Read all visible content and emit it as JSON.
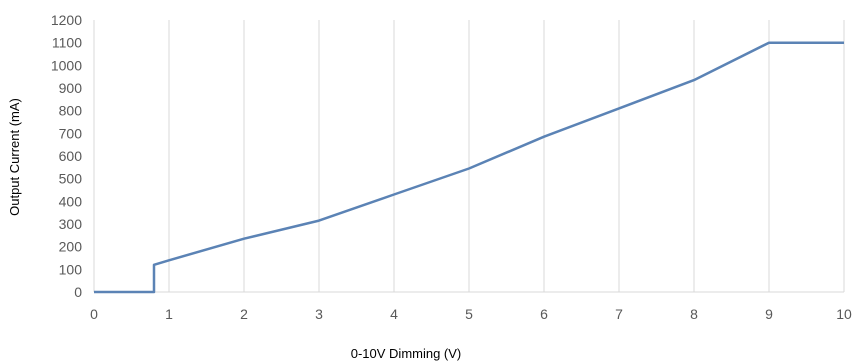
{
  "chart_data": {
    "type": "line",
    "xlabel": "0-10V Dimming (V)",
    "ylabel": "Output Current (mA)",
    "xlim": [
      0,
      10
    ],
    "ylim": [
      0,
      1200
    ],
    "xticks": [
      "0",
      "1",
      "2",
      "3",
      "4",
      "5",
      "6",
      "7",
      "8",
      "9",
      "10"
    ],
    "yticks": [
      "0",
      "100",
      "200",
      "300",
      "400",
      "500",
      "600",
      "700",
      "800",
      "900",
      "1000",
      "1100",
      "1200"
    ],
    "grid": "vertical",
    "legend": "none",
    "series": [
      {
        "color": "#5b83b5",
        "x": [
          0,
          0.8,
          0.8,
          1,
          2,
          3,
          4,
          5,
          6,
          7,
          8,
          9,
          10
        ],
        "y": [
          0,
          0,
          120,
          140,
          235,
          315,
          430,
          545,
          685,
          810,
          935,
          1100,
          1100
        ]
      }
    ]
  }
}
